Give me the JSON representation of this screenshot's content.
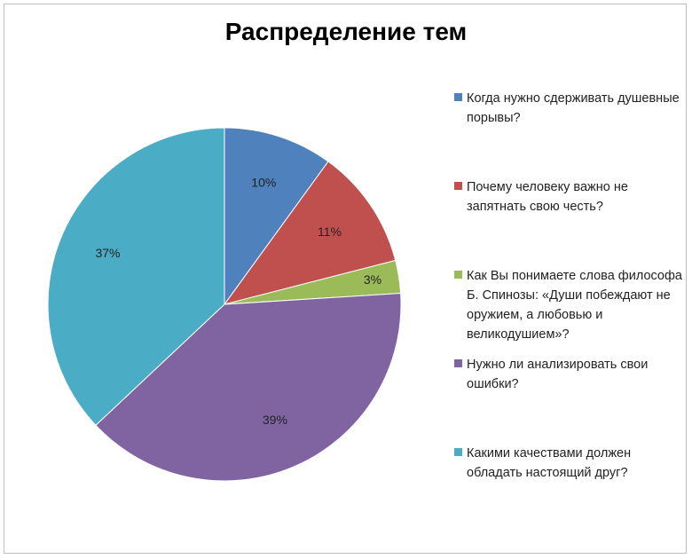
{
  "chart_data": {
    "type": "pie",
    "title": "Распределение тем",
    "legend_position": "right",
    "categories": [
      "Когда нужно сдерживать душевные порывы?",
      "Почему человеку важно не запятнать свою честь?",
      "Как Вы понимаете слова философа Б. Спинозы: «Души побеждают не оружием, а любовью и великодушием»?",
      "Нужно ли анализировать свои ошибки?",
      "Какими качествами должен обладать настоящий друг?"
    ],
    "values": [
      10,
      11,
      3,
      39,
      37
    ],
    "data_labels": [
      "10%",
      "11%",
      "3%",
      "39%",
      "37%"
    ],
    "colors": [
      "#4F81BD",
      "#C0504D",
      "#9BBB59",
      "#8064A2",
      "#4BACC6"
    ]
  }
}
